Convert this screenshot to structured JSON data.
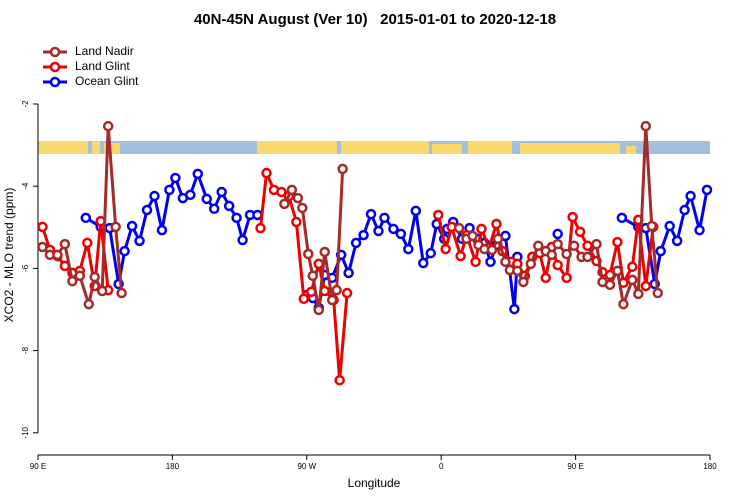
{
  "chart_data": {
    "type": "line",
    "title": "40N-45N August (Ver 10)   2015-01-01 to 2020-12-18",
    "x_label": "Longitude",
    "y_label": "XCO2 - MLO trend (ppm)",
    "xlim": [
      90,
      540
    ],
    "xticks": [
      {
        "value": 90,
        "label": "90 E"
      },
      {
        "value": 180,
        "label": "180"
      },
      {
        "value": 270,
        "label": "90 W"
      },
      {
        "value": 360,
        "label": "0"
      },
      {
        "value": 450,
        "label": "90 E"
      },
      {
        "value": 540,
        "label": "180"
      }
    ],
    "ylim": [
      -10.54,
      -0.2
    ],
    "yticks": [
      -2,
      -4,
      -6,
      -8,
      -10
    ],
    "legend": "top-left",
    "series": [
      {
        "name": "Land Nadir",
        "color": "#a52a2a",
        "x": [
          93,
          98,
          103,
          108,
          113,
          118,
          124,
          128,
          133,
          137,
          142,
          146,
          null,
          255,
          260,
          264,
          267,
          271,
          274,
          278,
          282,
          287,
          290,
          294,
          null,
          372,
          377,
          381,
          385,
          389,
          394,
          398,
          403,
          406,
          411,
          415,
          420,
          425,
          430,
          434,
          438,
          444,
          449,
          454,
          458,
          464,
          468,
          473,
          478,
          482,
          488,
          492,
          497,
          501,
          505
        ],
        "values": [
          -5.48,
          -5.67,
          -5.67,
          -5.41,
          -6.31,
          -6.18,
          -6.87,
          -6.21,
          -6.55,
          -2.54,
          -4.99,
          -6.6,
          null,
          -4.43,
          -4.09,
          -4.29,
          -4.53,
          -5.65,
          -6.18,
          -7.01,
          -5.6,
          -6.77,
          -6.53,
          -3.58,
          null,
          -5.02,
          -5.28,
          -5.21,
          -5.43,
          -5.53,
          -5.55,
          -5.28,
          -5.84,
          -6.04,
          -6.06,
          -6.33,
          -5.89,
          -5.45,
          -5.58,
          -5.67,
          -5.41,
          -5.65,
          -5.45,
          -5.72,
          -5.72,
          -5.41,
          -6.33,
          -6.4,
          -6.06,
          -6.87,
          -6.28,
          -6.62,
          -2.54,
          -4.97,
          -6.6
        ]
      },
      {
        "name": "Land Glint",
        "color": "#ee0000",
        "x": [
          93,
          98,
          103,
          108,
          113,
          118,
          123,
          128,
          132,
          137,
          null,
          239,
          243,
          248,
          253,
          258,
          263,
          268,
          273,
          278,
          282,
          288,
          292,
          297,
          null,
          358,
          363,
          367,
          373,
          377,
          383,
          387,
          392,
          397,
          401,
          407,
          411,
          416,
          421,
          426,
          430,
          434,
          438,
          444,
          448,
          453,
          458,
          464,
          468,
          473,
          478,
          482,
          488,
          492,
          497,
          502
        ],
        "values": [
          -4.99,
          -5.55,
          -5.7,
          -5.94,
          -6.11,
          -6.06,
          -5.38,
          -6.43,
          -4.85,
          -6.53,
          null,
          -5.02,
          -3.68,
          -4.09,
          -4.14,
          -4.24,
          -4.87,
          -6.74,
          -6.57,
          -5.89,
          -6.55,
          -6.77,
          -8.72,
          -6.6,
          null,
          -4.7,
          -5.53,
          -4.99,
          -5.7,
          -5.19,
          -5.84,
          -5.04,
          -5.5,
          -4.92,
          -5.58,
          -5.84,
          -5.89,
          -6.18,
          -5.72,
          -5.63,
          -6.23,
          -5.48,
          -5.92,
          -6.23,
          -4.75,
          -5.11,
          -5.45,
          -5.82,
          -6.09,
          -6.16,
          -5.36,
          -6.35,
          -5.96,
          -4.82,
          -6.43,
          -4.99
        ]
      },
      {
        "name": "Ocean Glint",
        "color": "#0000ee",
        "x": [
          122,
          132,
          138,
          144,
          148,
          153,
          158,
          163,
          168,
          173,
          178,
          182,
          187,
          192,
          197,
          203,
          208,
          213,
          218,
          223,
          227,
          232,
          237,
          null,
          270,
          274,
          278,
          282,
          287,
          293,
          298,
          303,
          308,
          313,
          318,
          322,
          328,
          333,
          338,
          343,
          348,
          353,
          357,
          362,
          364,
          368,
          374,
          379,
          384,
          389,
          393,
          397,
          403,
          409,
          411,
          null,
          438,
          null,
          481,
          492,
          497,
          503,
          507,
          513,
          518,
          523,
          527,
          533,
          538
        ],
        "values": [
          -4.77,
          -4.99,
          -5.02,
          -6.38,
          -5.58,
          -4.97,
          -5.33,
          -4.58,
          -4.24,
          -5.07,
          -4.09,
          -3.8,
          -4.29,
          -4.21,
          -3.7,
          -4.31,
          -4.55,
          -4.14,
          -4.48,
          -4.77,
          -5.31,
          -4.7,
          -4.7,
          null,
          -6.65,
          -6.72,
          -6.96,
          -6.16,
          -6.23,
          -5.67,
          -6.11,
          -5.38,
          -5.19,
          -4.68,
          -5.09,
          -4.77,
          -5.04,
          -5.16,
          -5.53,
          -4.6,
          -5.87,
          -5.63,
          -4.92,
          -5.28,
          -5.04,
          -4.87,
          -5.28,
          -5.02,
          -5.28,
          -5.38,
          -5.84,
          -5.43,
          -5.21,
          -6.99,
          -5.72,
          null,
          -5.16,
          null,
          -4.77,
          -4.99,
          -5.02,
          -6.38,
          -5.58,
          -4.97,
          -5.33,
          -4.58,
          -4.24,
          -5.07,
          -4.09
        ]
      }
    ]
  }
}
